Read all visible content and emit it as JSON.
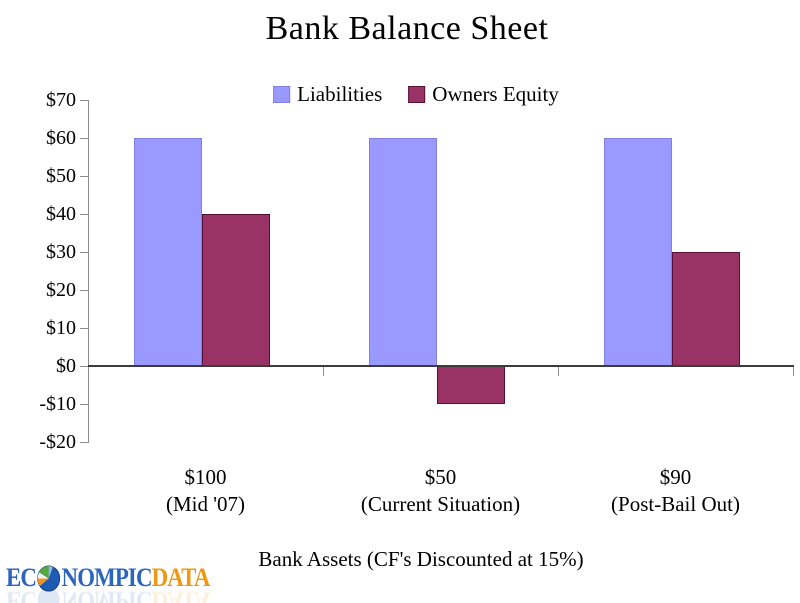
{
  "chart_data": {
    "type": "bar",
    "title": "Bank Balance Sheet",
    "xlabel": "Bank Assets (CF's Discounted at 15%)",
    "categories": [
      {
        "value": "$100",
        "note": "(Mid '07)"
      },
      {
        "value": "$50",
        "note": "(Current Situation)"
      },
      {
        "value": "$90",
        "note": "(Post-Bail Out)"
      }
    ],
    "series": [
      {
        "name": "Liabilities",
        "color": "#9999ff",
        "border": "#8080e0",
        "values": [
          60,
          60,
          60
        ]
      },
      {
        "name": "Owners Equity",
        "color": "#993366",
        "border": "#581134",
        "values": [
          40,
          -10,
          30
        ]
      }
    ],
    "ylim": [
      -20,
      70
    ],
    "ytick_step": 10,
    "yticks": [
      {
        "value": 70,
        "label": "$70"
      },
      {
        "value": 60,
        "label": "$60"
      },
      {
        "value": 50,
        "label": "$50"
      },
      {
        "value": 40,
        "label": "$40"
      },
      {
        "value": 30,
        "label": "$30"
      },
      {
        "value": 20,
        "label": "$20"
      },
      {
        "value": 10,
        "label": "$10"
      },
      {
        "value": 0,
        "label": "$0"
      },
      {
        "value": -10,
        "label": "-$10"
      },
      {
        "value": -20,
        "label": "-$20"
      }
    ],
    "grid": false,
    "legend_position": "top-center",
    "axis_colors": {
      "zero_line": "#3b3b3b",
      "axis": "#8c8c8c"
    }
  },
  "logo": {
    "part1": "EC",
    "part2": "NOMPIC",
    "part3": "DATA",
    "icon": "pie-globe-icon",
    "blue": "#2b65bf",
    "orange": "#f09712"
  }
}
